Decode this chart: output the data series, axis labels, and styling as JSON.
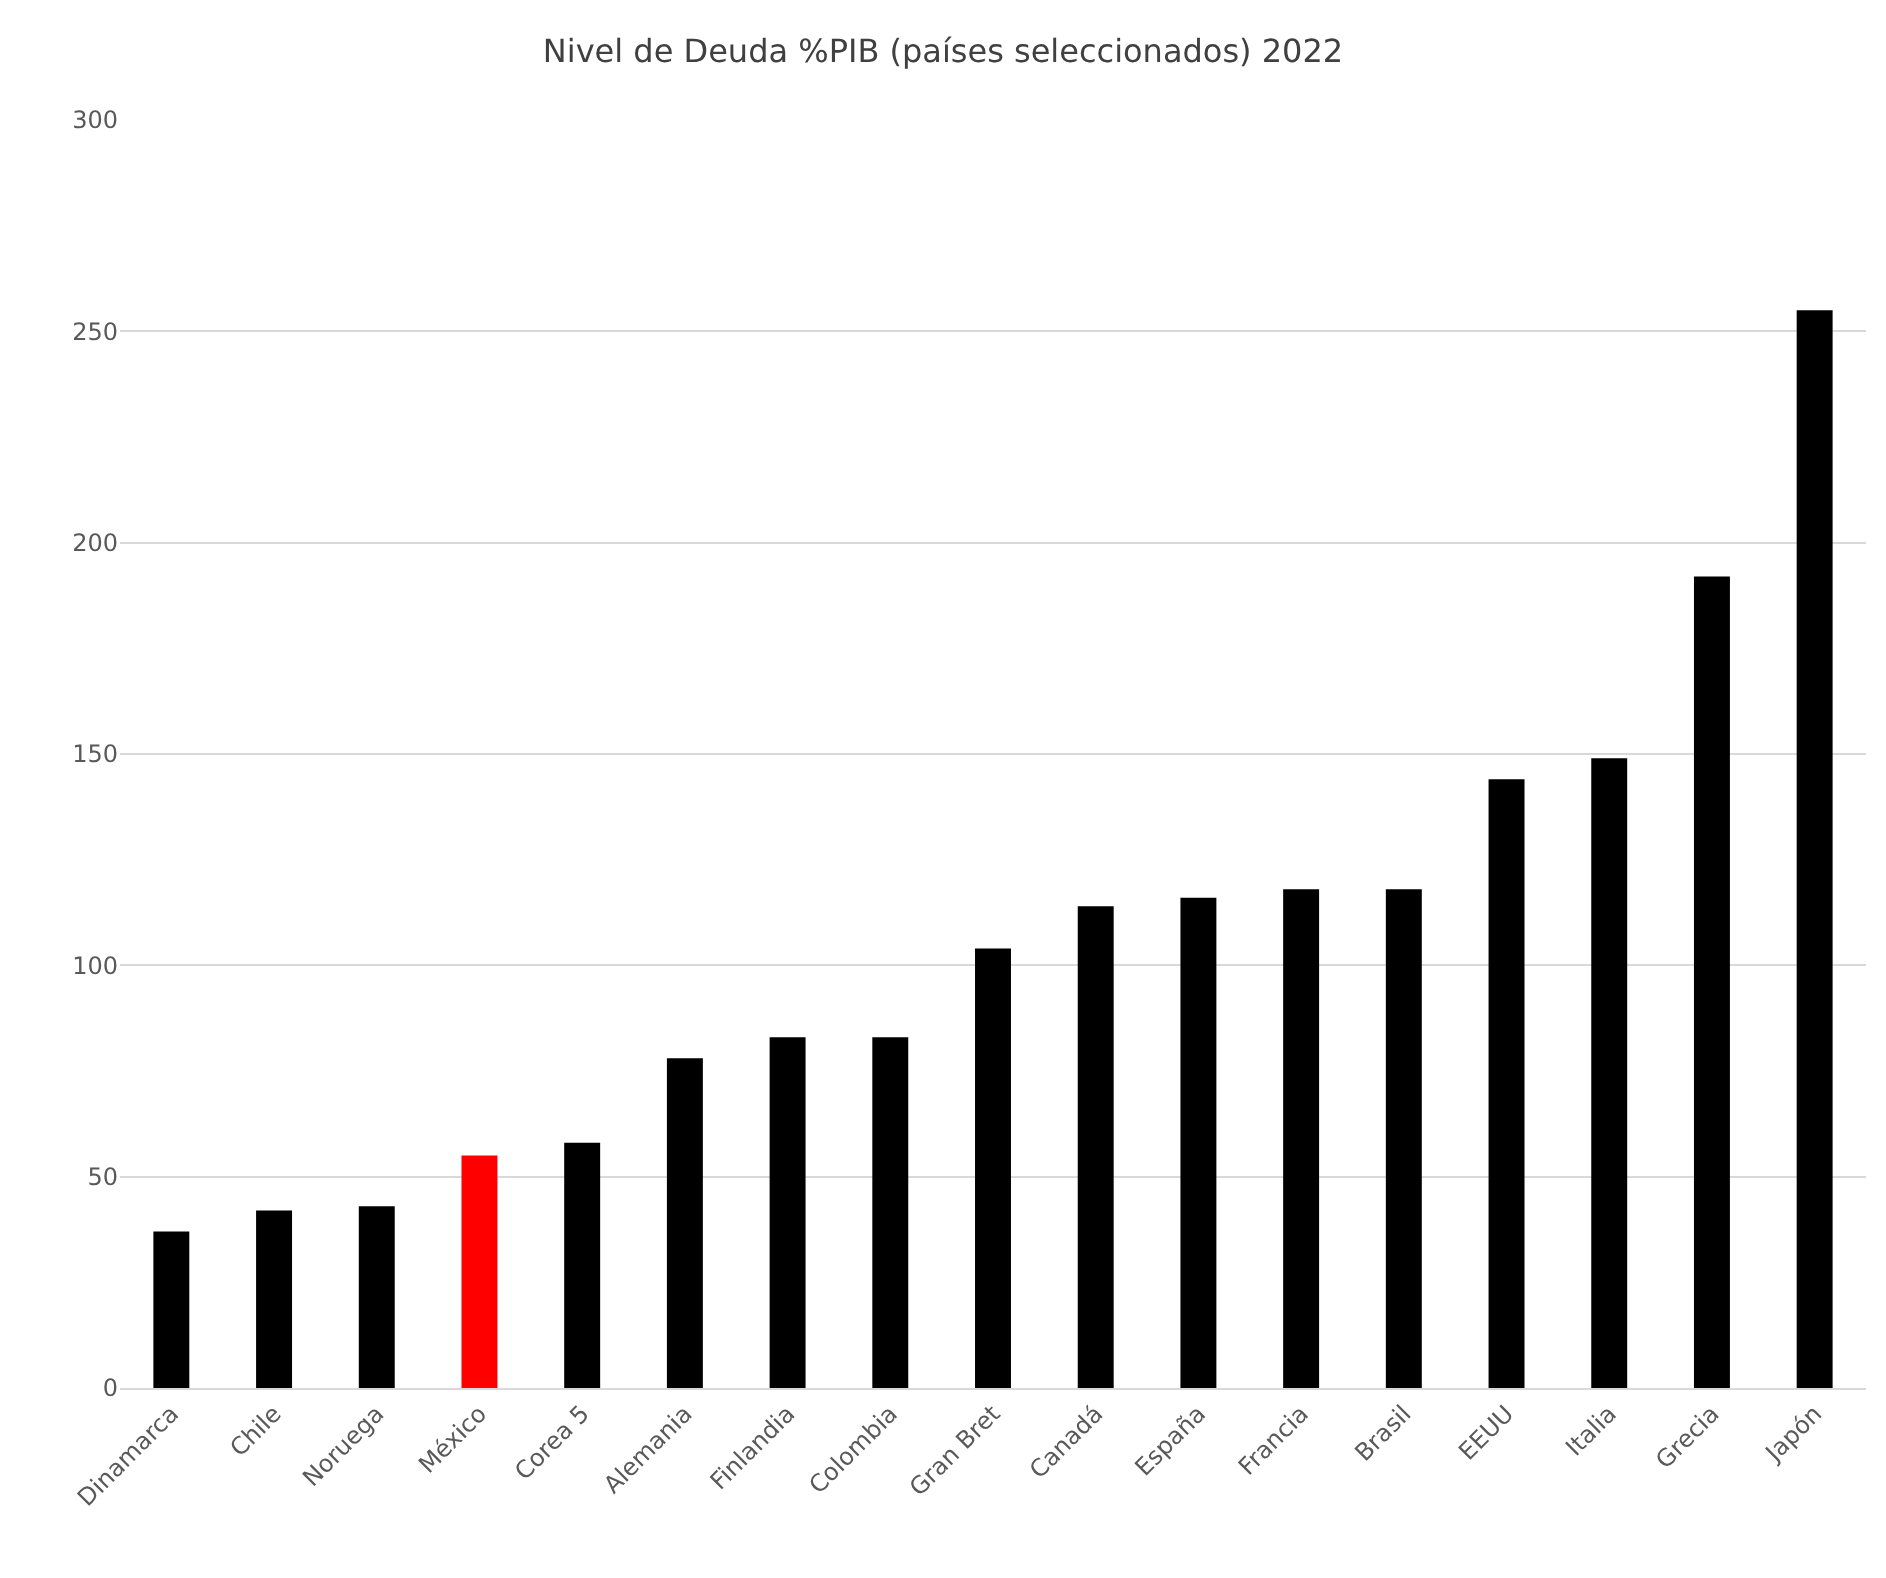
{
  "chart_data": {
    "type": "bar",
    "title": "Nivel de Deuda %PIB (países seleccionados) 2022",
    "categories": [
      "Dinamarca",
      "Chile",
      "Noruega",
      "México",
      "Corea 5",
      "Alemania",
      "Finlandia",
      "Colombia",
      "Gran Bret",
      "Canadá",
      "España",
      "Francia",
      "Brasil",
      "EEUU",
      "Italia",
      "Grecia",
      "Japón"
    ],
    "values": [
      37,
      42,
      43,
      55,
      58,
      78,
      83,
      83,
      104,
      114,
      116,
      118,
      118,
      144,
      149,
      192,
      255
    ],
    "colors": [
      "#000000",
      "#000000",
      "#000000",
      "#ff0000",
      "#000000",
      "#000000",
      "#000000",
      "#000000",
      "#000000",
      "#000000",
      "#000000",
      "#000000",
      "#000000",
      "#000000",
      "#000000",
      "#000000",
      "#000000"
    ],
    "ylim": [
      0,
      300
    ],
    "yticks": [
      0,
      50,
      100,
      150,
      200,
      250,
      300
    ],
    "grid": "y"
  }
}
